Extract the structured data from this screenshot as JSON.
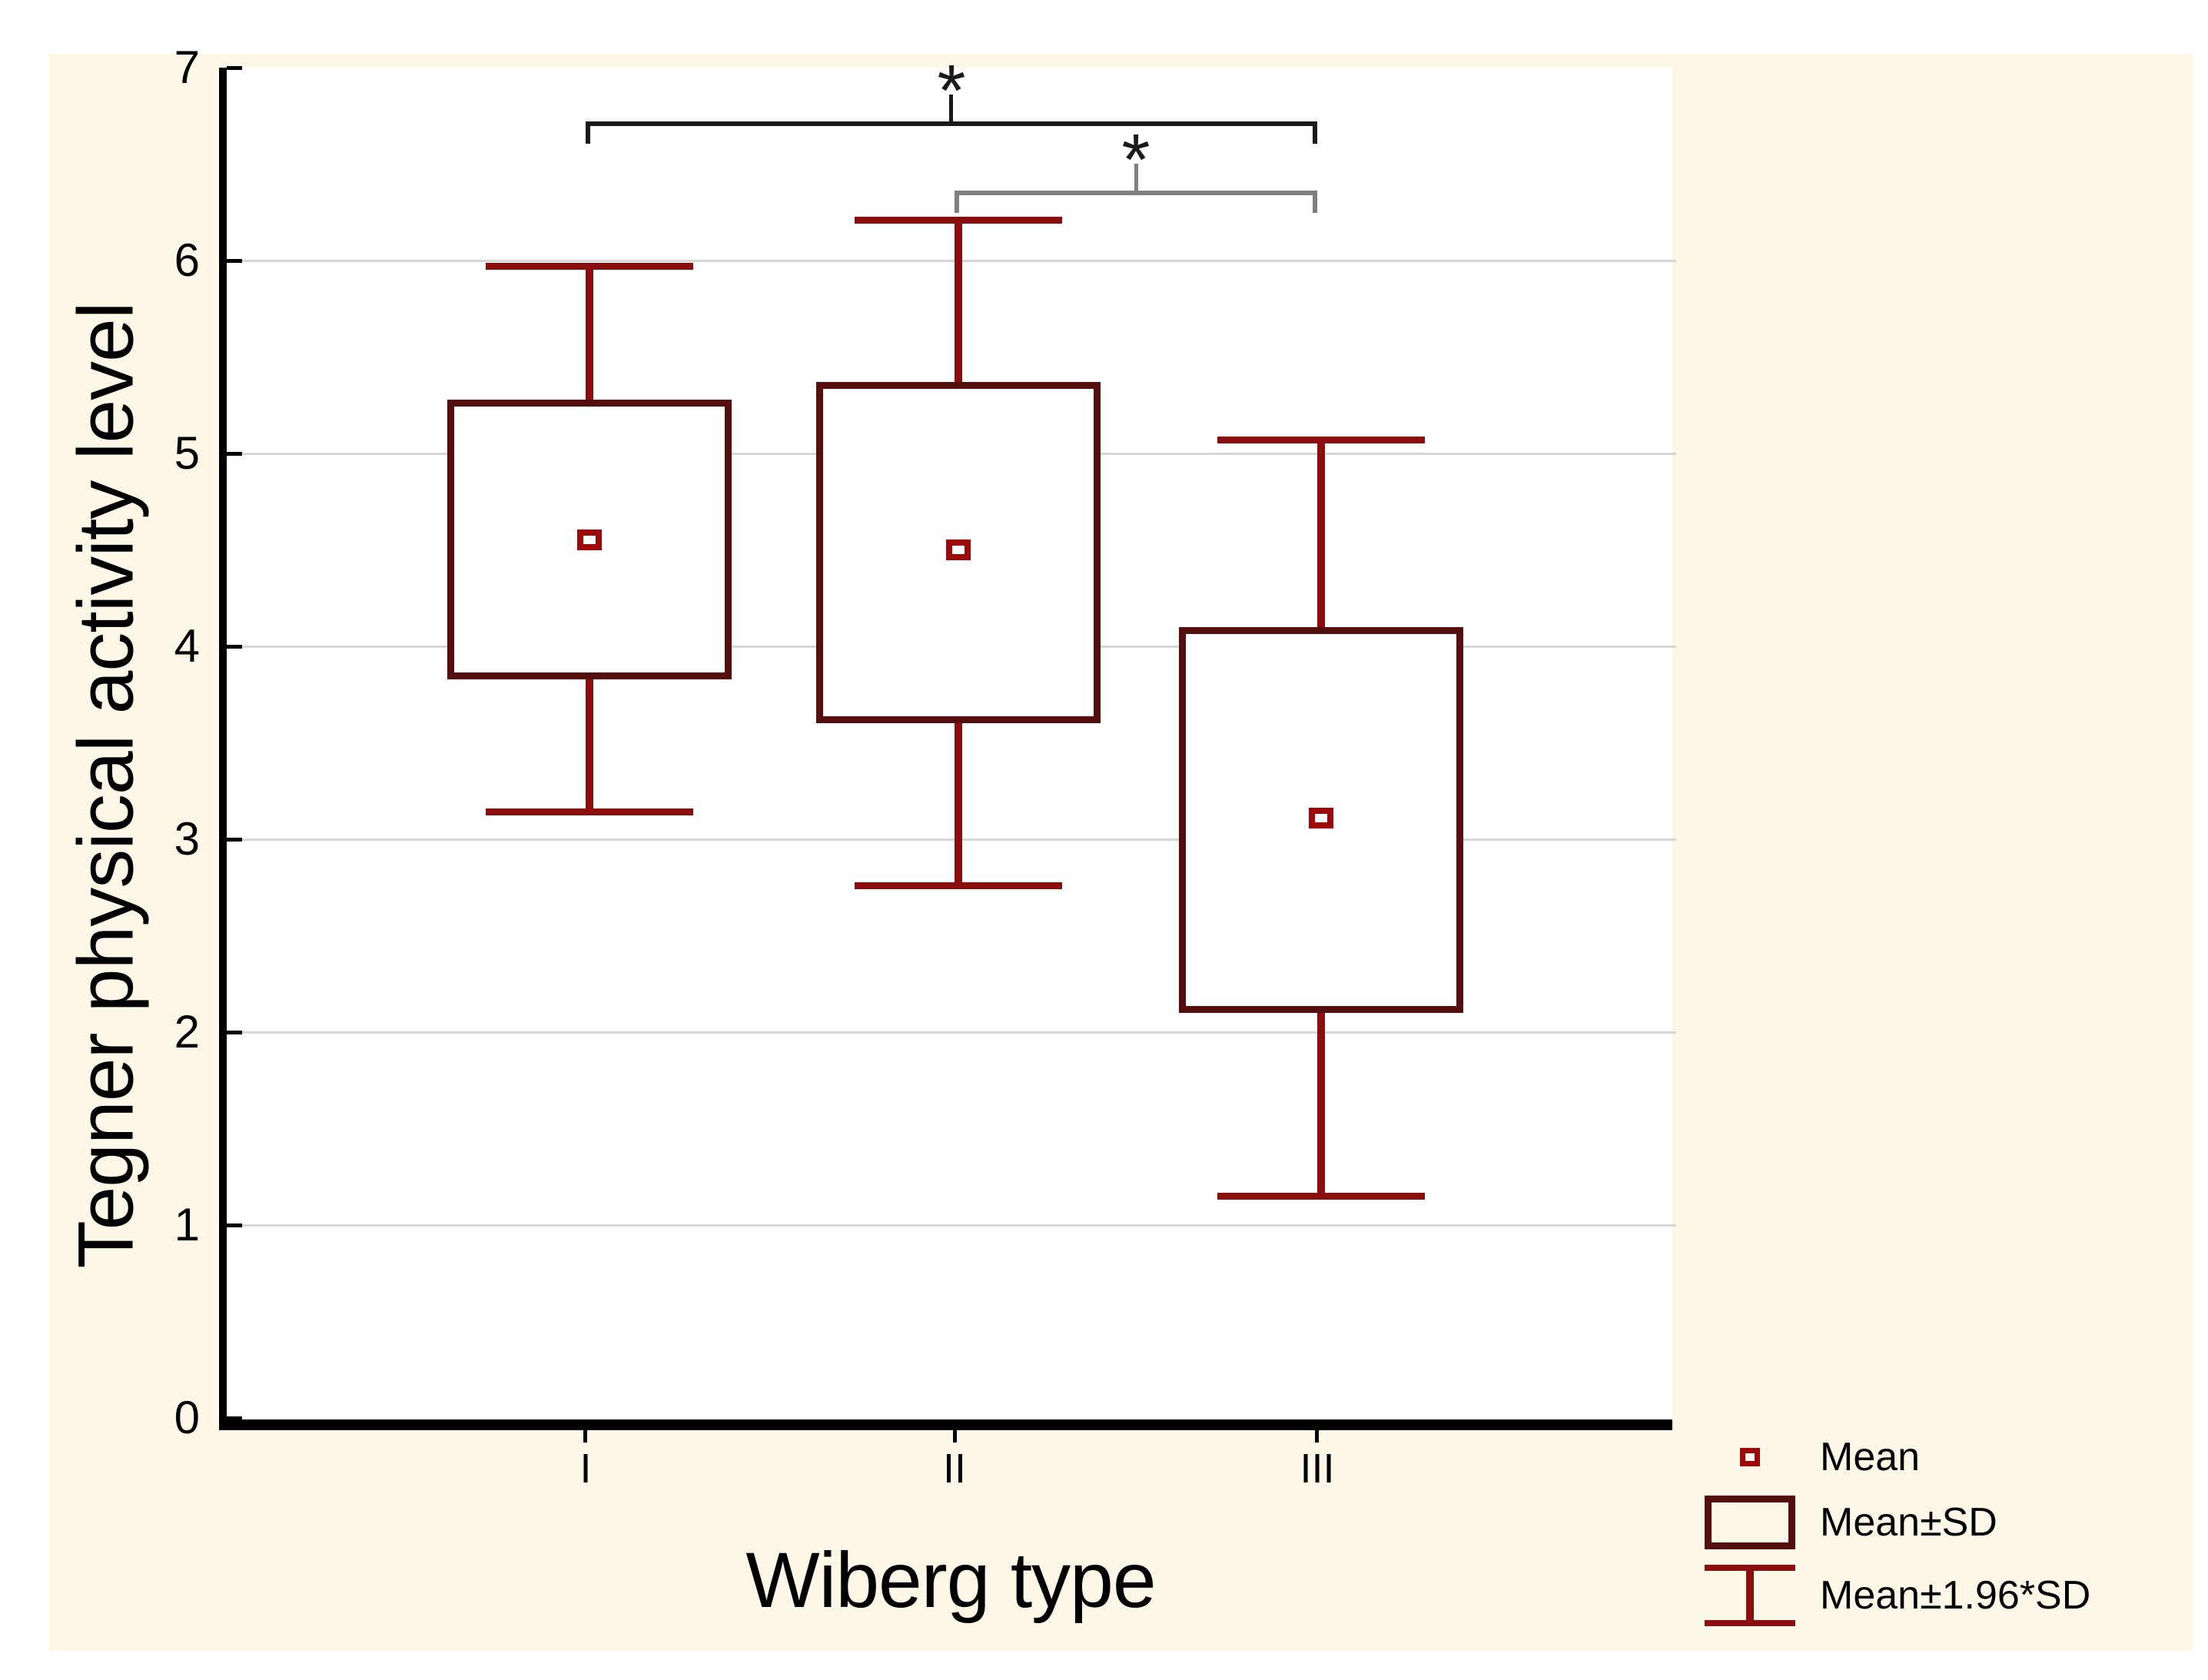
{
  "figure": {
    "background": "#ffffff",
    "panel_color": "#fdf7e8"
  },
  "chart_data": {
    "type": "box",
    "title": "",
    "xlabel": "Wiberg type",
    "ylabel": "Tegner physical activity level",
    "categories": [
      "I",
      "II",
      "III"
    ],
    "ylim": [
      0,
      7
    ],
    "yticks": [
      0,
      1,
      2,
      3,
      4,
      5,
      6,
      7
    ],
    "gridlines": [
      1,
      2,
      3,
      4,
      5,
      6
    ],
    "grid": "horizontal-light-gray",
    "legend_position": "bottom-right",
    "colors": {
      "box_border": "#550e0e",
      "whisker": "#8b0e0e",
      "mean_marker": "#9e0808",
      "grid": "#d7d7d7",
      "axis": "#000000",
      "bracket_primary": "#1a1a1a",
      "bracket_secondary": "#7f7f7f",
      "text": "#000000"
    },
    "groups": [
      {
        "category": "I",
        "mean": 4.55,
        "box_low": 3.83,
        "box_high": 5.28,
        "whisker_low": 3.14,
        "whisker_high": 5.97
      },
      {
        "category": "II",
        "mean": 4.5,
        "box_low": 3.6,
        "box_high": 5.37,
        "whisker_low": 2.76,
        "whisker_high": 6.21
      },
      {
        "category": "III",
        "mean": 3.11,
        "box_low": 2.1,
        "box_high": 4.1,
        "whisker_low": 1.15,
        "whisker_high": 5.07
      }
    ],
    "annotations": [
      {
        "label": "*",
        "from": "I",
        "to": "III",
        "line_y": 6.71,
        "color_key": "bracket_primary"
      },
      {
        "label": "*",
        "from": "II",
        "to": "III",
        "line_y": 6.35,
        "color_key": "bracket_secondary"
      }
    ],
    "legend": {
      "items": [
        {
          "symbol": "mean-marker",
          "label": "Mean"
        },
        {
          "symbol": "box",
          "label": "Mean±SD"
        },
        {
          "symbol": "whisker",
          "label": "Mean±1.96*SD"
        }
      ]
    }
  }
}
